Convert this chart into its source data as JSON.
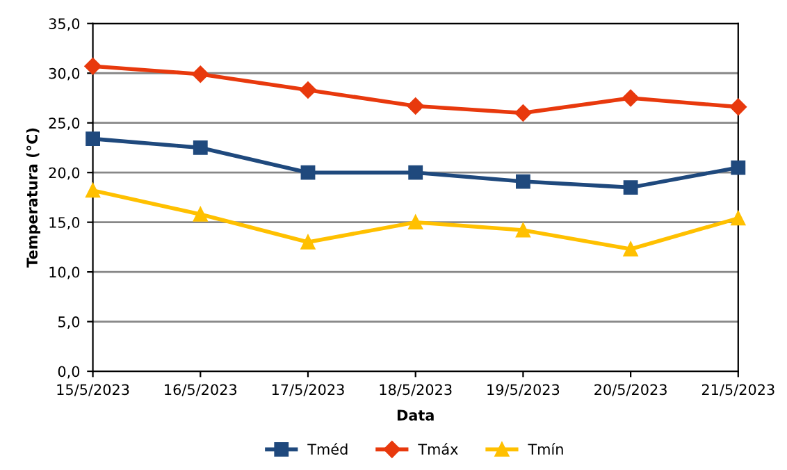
{
  "chart_data": {
    "type": "line",
    "xlabel": "Data",
    "ylabel": "Temperatura (°C)",
    "categories": [
      "15/5/2023",
      "16/5/2023",
      "17/5/2023",
      "18/5/2023",
      "19/5/2023",
      "20/5/2023",
      "21/5/2023"
    ],
    "series": [
      {
        "name": "Tméd",
        "color": "#1f497d",
        "marker": "square",
        "values": [
          23.4,
          22.5,
          20.0,
          20.0,
          19.1,
          18.5,
          20.5
        ]
      },
      {
        "name": "Tmáx",
        "color": "#e8390d",
        "marker": "diamond",
        "values": [
          30.7,
          29.9,
          28.3,
          26.7,
          26.0,
          27.5,
          26.6
        ]
      },
      {
        "name": "Tmín",
        "color": "#ffc000",
        "marker": "triangle",
        "values": [
          18.2,
          15.8,
          13.0,
          15.0,
          14.2,
          12.3,
          15.4
        ]
      }
    ],
    "ylim": [
      0,
      35
    ],
    "yticks": [
      {
        "value": 0,
        "label": "0,0"
      },
      {
        "value": 5,
        "label": "5,0"
      },
      {
        "value": 10,
        "label": "10,0"
      },
      {
        "value": 15,
        "label": "15,0"
      },
      {
        "value": 20,
        "label": "20,0"
      },
      {
        "value": 25,
        "label": "25,0"
      },
      {
        "value": 30,
        "label": "30,0"
      },
      {
        "value": 35,
        "label": "35,0"
      }
    ],
    "grid": "y",
    "legend": "bottom",
    "line_style": "solid"
  }
}
